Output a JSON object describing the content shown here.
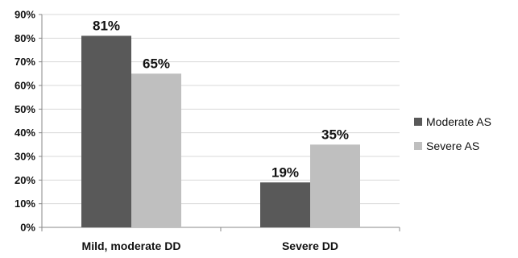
{
  "chart_data": {
    "type": "bar",
    "title": "",
    "xlabel": "",
    "ylabel": "",
    "categories": [
      "Mild, moderate DD",
      "Severe DD"
    ],
    "series": [
      {
        "name": "Moderate AS",
        "values": [
          81,
          19
        ],
        "color": "#595959"
      },
      {
        "name": "Severe AS",
        "values": [
          65,
          35
        ],
        "color": "#bfbfbf"
      }
    ],
    "data_labels": [
      [
        "81%",
        "19%"
      ],
      [
        "65%",
        "35%"
      ]
    ],
    "ylim": [
      0,
      90
    ],
    "yticks": [
      0,
      10,
      20,
      30,
      40,
      50,
      60,
      70,
      80,
      90
    ],
    "ytick_labels": [
      "0%",
      "10%",
      "20%",
      "30%",
      "40%",
      "50%",
      "60%",
      "70%",
      "80%",
      "90%"
    ],
    "grid": true,
    "legend_position": "right"
  }
}
